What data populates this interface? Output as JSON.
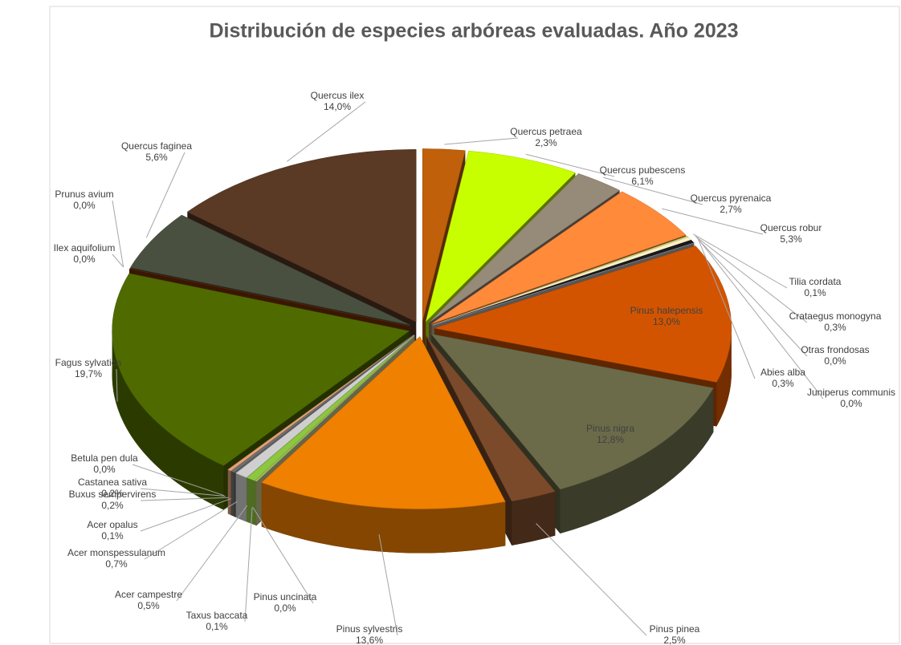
{
  "chart_data": {
    "type": "pie",
    "title": "Distribución de especies arbóreas evaluadas. Año 2023",
    "categories": [
      "Quercus petraea",
      "Quercus pubescens",
      "Quercus pyrenaica",
      "Quercus robur",
      "Tilia cordata",
      "Crataegus monogyna",
      "Otras frondosas",
      "Abies alba",
      "Juniperus communis",
      "Pinus halepensis",
      "Pinus nigra",
      "Pinus pinea",
      "Pinus sylvestris",
      "Pinus uncinata",
      "Taxus baccata",
      "Acer campestre",
      "Acer monspessulanum",
      "Acer opalus",
      "Buxus sempervirens",
      "Castanea sativa",
      "Betula pen dula",
      "Fagus sylvatica",
      "Ilex aquifolium",
      "Prunus avium",
      "Quercus faginea",
      "Quercus ilex"
    ],
    "values": [
      2.3,
      6.1,
      2.7,
      5.3,
      0.1,
      0.3,
      0.0,
      0.3,
      0.0,
      13.0,
      12.8,
      2.5,
      13.6,
      0.0,
      0.1,
      0.5,
      0.7,
      0.1,
      0.2,
      0.2,
      0.0,
      19.7,
      0.0,
      0.0,
      5.6,
      14.0
    ],
    "value_labels": [
      "2,3%",
      "6,1%",
      "2,7%",
      "5,3%",
      "0,1%",
      "0,3%",
      "0,0%",
      "0,3%",
      "0,0%",
      "13,0%",
      "12,8%",
      "2,5%",
      "13,6%",
      "0,0%",
      "0,1%",
      "0,5%",
      "0,7%",
      "0,1%",
      "0,2%",
      "0,2%",
      "0,0%",
      "19,7%",
      "0,0%",
      "0,0%",
      "5,6%",
      "14,0%"
    ],
    "colors": [
      "#c0600a",
      "#c8ff00",
      "#968a78",
      "#ff8a3a",
      "#d0e070",
      "#fff0c8",
      "#ffffff",
      "#1a1a1a",
      "#c0c0c0",
      "#d35400",
      "#6b6b4a",
      "#7a4a2a",
      "#f08000",
      "#e0e0a0",
      "#a0c050",
      "#8dc63f",
      "#cfcfcf",
      "#606060",
      "#707070",
      "#e8a070",
      "#ffe0c0",
      "#4f6b00",
      "#3a1a00",
      "#803000",
      "#4a5040",
      "#5a3a25"
    ]
  }
}
